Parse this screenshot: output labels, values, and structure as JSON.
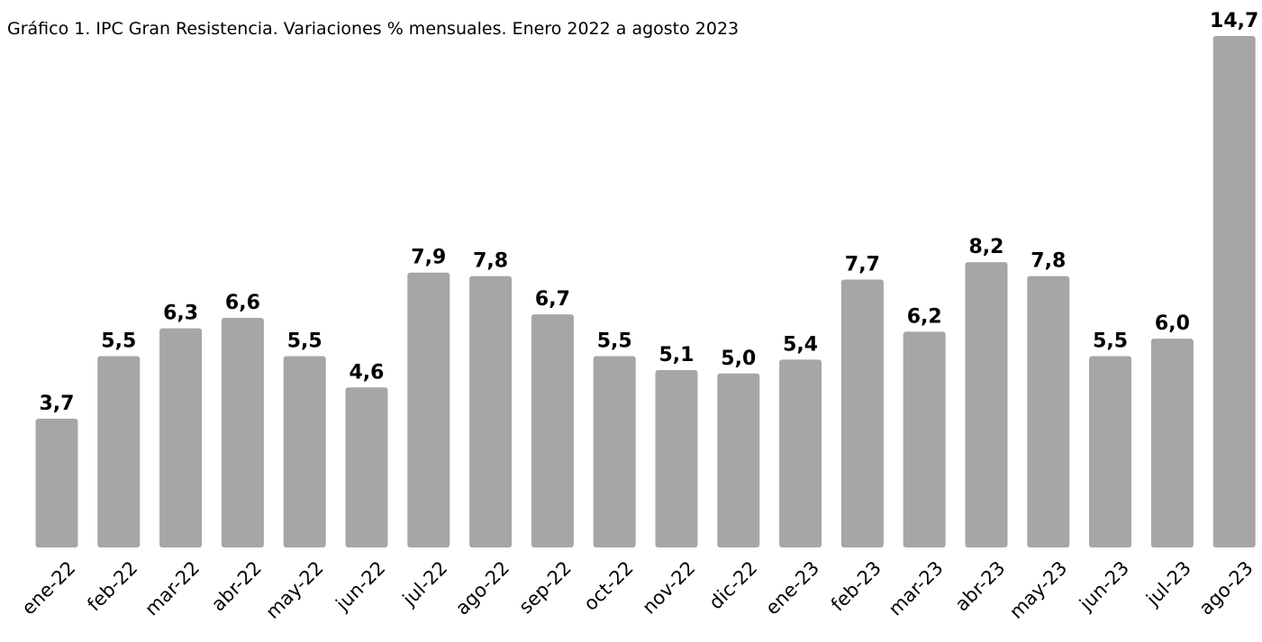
{
  "chart_data": {
    "type": "bar",
    "title": "Gráfico 1. IPC Gran Resistencia. Variaciones % mensuales. Enero 2022 a agosto 2023",
    "categories": [
      "ene-22",
      "feb-22",
      "mar-22",
      "abr-22",
      "may-22",
      "jun-22",
      "jul-22",
      "ago-22",
      "sep-22",
      "oct-22",
      "nov-22",
      "dic-22",
      "ene-23",
      "feb-23",
      "mar-23",
      "abr-23",
      "may-23",
      "jun-23",
      "jul-23",
      "ago-23"
    ],
    "values": [
      3.7,
      5.5,
      6.3,
      6.6,
      5.5,
      4.6,
      7.9,
      7.8,
      6.7,
      5.5,
      5.1,
      5.0,
      5.4,
      7.7,
      6.2,
      8.2,
      7.8,
      5.5,
      6.0,
      14.7
    ],
    "value_labels": [
      "3,7",
      "5,5",
      "6,3",
      "6,6",
      "5,5",
      "4,6",
      "7,9",
      "7,8",
      "6,7",
      "5,5",
      "5,1",
      "5,0",
      "5,4",
      "7,7",
      "6,2",
      "8,2",
      "7,8",
      "5,5",
      "6,0",
      "14,7"
    ],
    "color": "#a6a6a6"
  }
}
